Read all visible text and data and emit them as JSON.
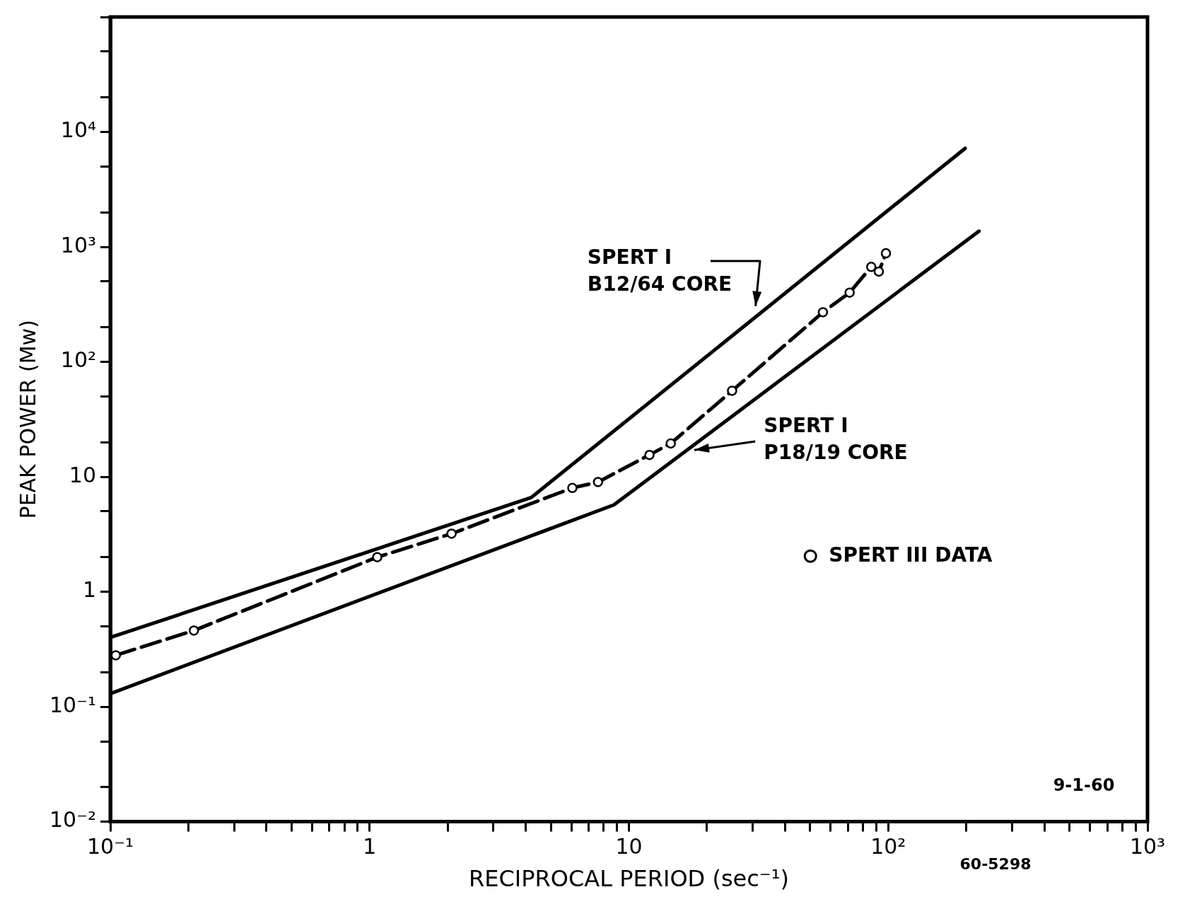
{
  "chart_data": {
    "type": "line",
    "xlabel": "RECIPROCAL PERIOD (sec⁻¹)",
    "ylabel": "PEAK POWER (Mw)",
    "log": "xy",
    "grid": false,
    "legend": "right",
    "xlim": [
      0.1,
      1000
    ],
    "ylim": [
      0.01,
      100000
    ],
    "xticks": [
      {
        "value": 0.1,
        "label": "10⁻¹"
      },
      {
        "value": 0.2,
        "label": null
      },
      {
        "value": 0.3,
        "label": null
      },
      {
        "value": 0.4,
        "label": null
      },
      {
        "value": 0.5,
        "label": null
      },
      {
        "value": 0.6,
        "label": null
      },
      {
        "value": 0.7,
        "label": null
      },
      {
        "value": 0.8,
        "label": null
      },
      {
        "value": 0.9,
        "label": null
      },
      {
        "value": 1,
        "label": "1"
      },
      {
        "value": 2,
        "label": null
      },
      {
        "value": 3,
        "label": null
      },
      {
        "value": 4,
        "label": null
      },
      {
        "value": 5,
        "label": null
      },
      {
        "value": 6,
        "label": null
      },
      {
        "value": 7,
        "label": null
      },
      {
        "value": 8,
        "label": null
      },
      {
        "value": 9,
        "label": null
      },
      {
        "value": 10,
        "label": "10"
      },
      {
        "value": 20,
        "label": null
      },
      {
        "value": 30,
        "label": null
      },
      {
        "value": 40,
        "label": null
      },
      {
        "value": 50,
        "label": null
      },
      {
        "value": 60,
        "label": null
      },
      {
        "value": 70,
        "label": null
      },
      {
        "value": 80,
        "label": null
      },
      {
        "value": 90,
        "label": null
      },
      {
        "value": 100,
        "label": "10²"
      },
      {
        "value": 200,
        "label": null
      },
      {
        "value": 300,
        "label": null
      },
      {
        "value": 400,
        "label": null
      },
      {
        "value": 500,
        "label": null
      },
      {
        "value": 600,
        "label": null
      },
      {
        "value": 700,
        "label": null
      },
      {
        "value": 800,
        "label": null
      },
      {
        "value": 900,
        "label": null
      },
      {
        "value": 1000,
        "label": "10³"
      }
    ],
    "yticks": [
      {
        "value": 0.01,
        "label": "10⁻²"
      },
      {
        "value": 0.02,
        "label": null
      },
      {
        "value": 0.05,
        "label": null
      },
      {
        "value": 0.1,
        "label": "10⁻¹"
      },
      {
        "value": 0.2,
        "label": null
      },
      {
        "value": 0.5,
        "label": null
      },
      {
        "value": 1,
        "label": "1"
      },
      {
        "value": 2,
        "label": null
      },
      {
        "value": 5,
        "label": null
      },
      {
        "value": 10,
        "label": "10"
      },
      {
        "value": 20,
        "label": null
      },
      {
        "value": 50,
        "label": null
      },
      {
        "value": 100,
        "label": "10²"
      },
      {
        "value": 200,
        "label": null
      },
      {
        "value": 500,
        "label": null
      },
      {
        "value": 1000,
        "label": "10³"
      },
      {
        "value": 2000,
        "label": null
      },
      {
        "value": 5000,
        "label": null
      },
      {
        "value": 10000,
        "label": "10⁴"
      },
      {
        "value": 20000,
        "label": null
      },
      {
        "value": 50000,
        "label": null
      },
      {
        "value": 100000,
        "label": null
      }
    ],
    "series": [
      {
        "name": "SPERT I B12/64 CORE",
        "color": "#000000",
        "marker": "none",
        "line_style": "solid",
        "x": [
          0.1,
          4.2,
          198
        ],
        "values": [
          0.4,
          6.6,
          7200
        ]
      },
      {
        "name": "SPERT I P18/19 CORE",
        "color": "#000000",
        "marker": "none",
        "line_style": "solid",
        "x": [
          0.1,
          8.75,
          224
        ],
        "values": [
          0.13,
          5.7,
          1370
        ]
      },
      {
        "name": "SPERT III DATA",
        "color": "#000000",
        "marker": "circle",
        "line_style": "dashed",
        "x": [
          0.105,
          0.21,
          1.07,
          2.07,
          6.05,
          7.6,
          12,
          14.5,
          25,
          56,
          71,
          86,
          92,
          98
        ],
        "values": [
          0.28,
          0.46,
          2.0,
          3.2,
          8.0,
          9.0,
          15.5,
          19.5,
          56,
          270,
          400,
          670,
          610,
          880
        ]
      }
    ],
    "annotations": [
      "9-1-60",
      "60-5298"
    ]
  }
}
